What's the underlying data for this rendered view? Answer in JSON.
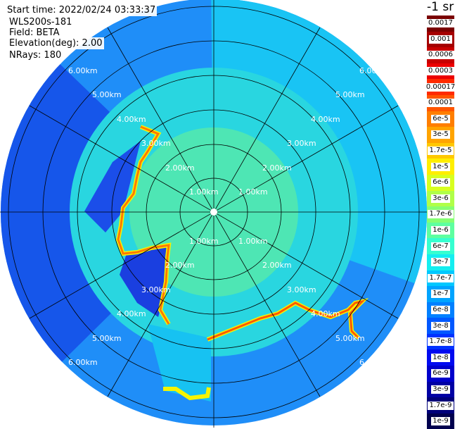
{
  "header": {
    "start_time": "Start time: 2022/02/24 03:33:37",
    "instrument": "WLS200s-181",
    "field": "Field: BETA",
    "elevation": "Elevation(deg): 2.00",
    "nrays": "NRays: 180"
  },
  "colorbar": {
    "unit": "-1 sr",
    "entries": [
      {
        "label": "0.0017",
        "color": "#7a0000"
      },
      {
        "label": "0.001",
        "color": "#a50000"
      },
      {
        "label": "0.0006",
        "color": "#c80000"
      },
      {
        "label": "0.0003",
        "color": "#ec0000"
      },
      {
        "label": "0.00017",
        "color": "#ff2a00"
      },
      {
        "label": "0.0001",
        "color": "#ff5500"
      },
      {
        "label": "6e-5",
        "color": "#ff7e00"
      },
      {
        "label": "3e-5",
        "color": "#ffa400"
      },
      {
        "label": "1.7e-5",
        "color": "#ffc800"
      },
      {
        "label": "1e-5",
        "color": "#ffee00"
      },
      {
        "label": "6e-6",
        "color": "#d8ff1f"
      },
      {
        "label": "3e-6",
        "color": "#b0ff48"
      },
      {
        "label": "1.7e-6",
        "color": "#86ff72"
      },
      {
        "label": "1e-6",
        "color": "#5effa0"
      },
      {
        "label": "6e-7",
        "color": "#36ffd0"
      },
      {
        "label": "3e-7",
        "color": "#14eef0"
      },
      {
        "label": "1.7e-7",
        "color": "#00c8ff"
      },
      {
        "label": "1e-7",
        "color": "#00a4ff"
      },
      {
        "label": "6e-8",
        "color": "#0080ff"
      },
      {
        "label": "3e-8",
        "color": "#0058ff"
      },
      {
        "label": "1.7e-8",
        "color": "#0032ff"
      },
      {
        "label": "1e-8",
        "color": "#000af0"
      },
      {
        "label": "6e-9",
        "color": "#0000cc"
      },
      {
        "label": "3e-9",
        "color": "#0000a4"
      },
      {
        "label": "1.7e-9",
        "color": "#00007a"
      },
      {
        "label": "1e-9",
        "color": "#00004e"
      }
    ]
  },
  "range_rings": [
    "1.00km",
    "2.00km",
    "3.00km",
    "4.00km",
    "5.00km",
    "6.00km"
  ],
  "colors": {
    "background": "#ffffff",
    "blue_dense": "#1a52ef",
    "blue_mid": "#1f9cff",
    "cyan": "#19d2ef",
    "green_cyan": "#2fe7b6",
    "green": "#4fe9a8",
    "yellow": "#f6f400",
    "orange": "#ff8f00",
    "red": "#ff3a00"
  }
}
